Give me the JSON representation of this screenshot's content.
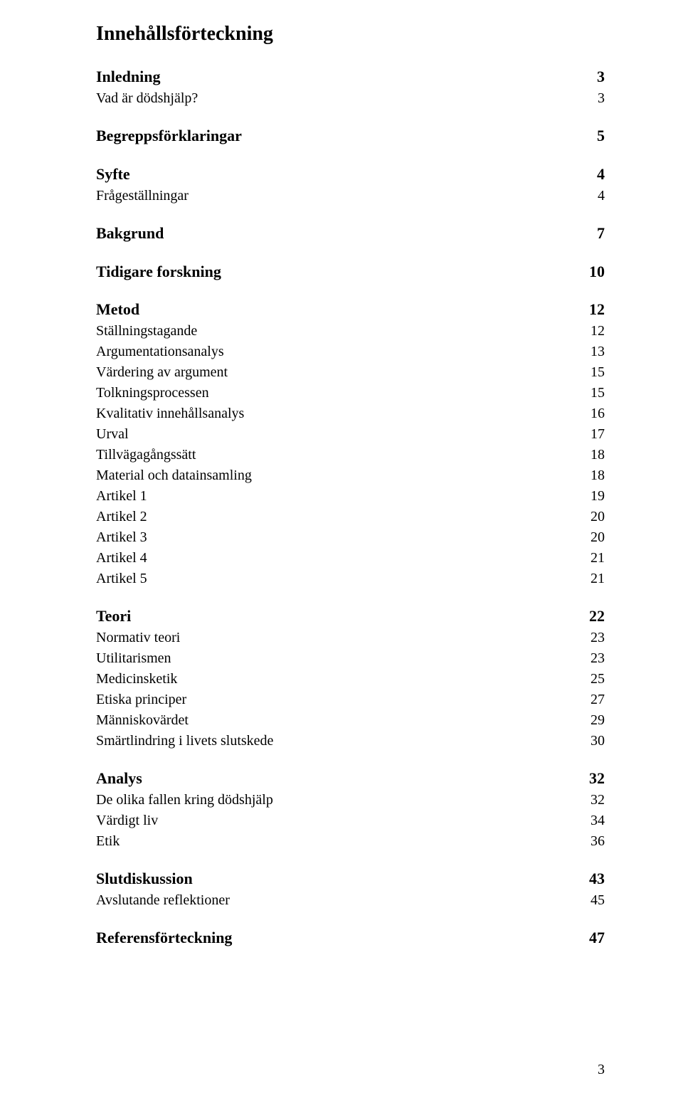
{
  "toc_title": "Innehållsförteckning",
  "page_number": "3",
  "typography": {
    "font_family": "Times New Roman",
    "title_fontsize_pt": 21,
    "lvl1_fontsize_pt": 16.5,
    "lvl2_fontsize_pt": 15,
    "text_color": "#000000",
    "background_color": "#ffffff"
  },
  "groups": [
    {
      "entries": [
        {
          "label": "Inledning",
          "page": "3",
          "lvl": 1
        },
        {
          "label": "Vad är dödshjälp?",
          "page": "3",
          "lvl": 2
        }
      ]
    },
    {
      "entries": [
        {
          "label": "Begreppsförklaringar",
          "page": "5",
          "lvl": 1
        }
      ]
    },
    {
      "entries": [
        {
          "label": "Syfte",
          "page": "4",
          "lvl": 1
        },
        {
          "label": "Frågeställningar",
          "page": "4",
          "lvl": 2
        }
      ]
    },
    {
      "entries": [
        {
          "label": "Bakgrund",
          "page": "7",
          "lvl": 1
        }
      ]
    },
    {
      "entries": [
        {
          "label": "Tidigare forskning",
          "page": "10",
          "lvl": 1
        }
      ]
    },
    {
      "entries": [
        {
          "label": "Metod",
          "page": "12",
          "lvl": 1
        },
        {
          "label": "Ställningstagande",
          "page": "12",
          "lvl": 2
        },
        {
          "label": "Argumentationsanalys",
          "page": "13",
          "lvl": 2
        },
        {
          "label": "Värdering av argument",
          "page": "15",
          "lvl": 2
        },
        {
          "label": "Tolkningsprocessen",
          "page": "15",
          "lvl": 2
        },
        {
          "label": "Kvalitativ innehållsanalys",
          "page": "16",
          "lvl": 2
        },
        {
          "label": "Urval",
          "page": "17",
          "lvl": 2
        },
        {
          "label": "Tillvägagångssätt",
          "page": "18",
          "lvl": 2
        },
        {
          "label": "Material och datainsamling",
          "page": "18",
          "lvl": 2
        },
        {
          "label": "Artikel 1",
          "page": "19",
          "lvl": 2
        },
        {
          "label": "Artikel 2",
          "page": "20",
          "lvl": 2
        },
        {
          "label": "Artikel 3",
          "page": "20",
          "lvl": 2
        },
        {
          "label": "Artikel 4",
          "page": "21",
          "lvl": 2
        },
        {
          "label": "Artikel 5",
          "page": "21",
          "lvl": 2
        }
      ]
    },
    {
      "entries": [
        {
          "label": "Teori",
          "page": "22",
          "lvl": 1
        },
        {
          "label": "Normativ teori",
          "page": "23",
          "lvl": 2
        },
        {
          "label": "Utilitarismen",
          "page": "23",
          "lvl": 2
        },
        {
          "label": "Medicinsketik",
          "page": "25",
          "lvl": 2
        },
        {
          "label": "Etiska principer",
          "page": "27",
          "lvl": 2
        },
        {
          "label": "Människovärdet",
          "page": "29",
          "lvl": 2
        },
        {
          "label": "Smärtlindring i livets slutskede",
          "page": "30",
          "lvl": 2
        }
      ]
    },
    {
      "entries": [
        {
          "label": "Analys",
          "page": "32",
          "lvl": 1
        },
        {
          "label": "De olika fallen kring dödshjälp",
          "page": "32",
          "lvl": 2
        },
        {
          "label": "Värdigt liv",
          "page": "34",
          "lvl": 2
        },
        {
          "label": "Etik",
          "page": "36",
          "lvl": 2
        }
      ]
    },
    {
      "entries": [
        {
          "label": "Slutdiskussion",
          "page": "43",
          "lvl": 1
        },
        {
          "label": "Avslutande reflektioner",
          "page": "45",
          "lvl": 2
        }
      ]
    },
    {
      "entries": [
        {
          "label": "Referensförteckning",
          "page": "47",
          "lvl": 1
        }
      ]
    }
  ]
}
